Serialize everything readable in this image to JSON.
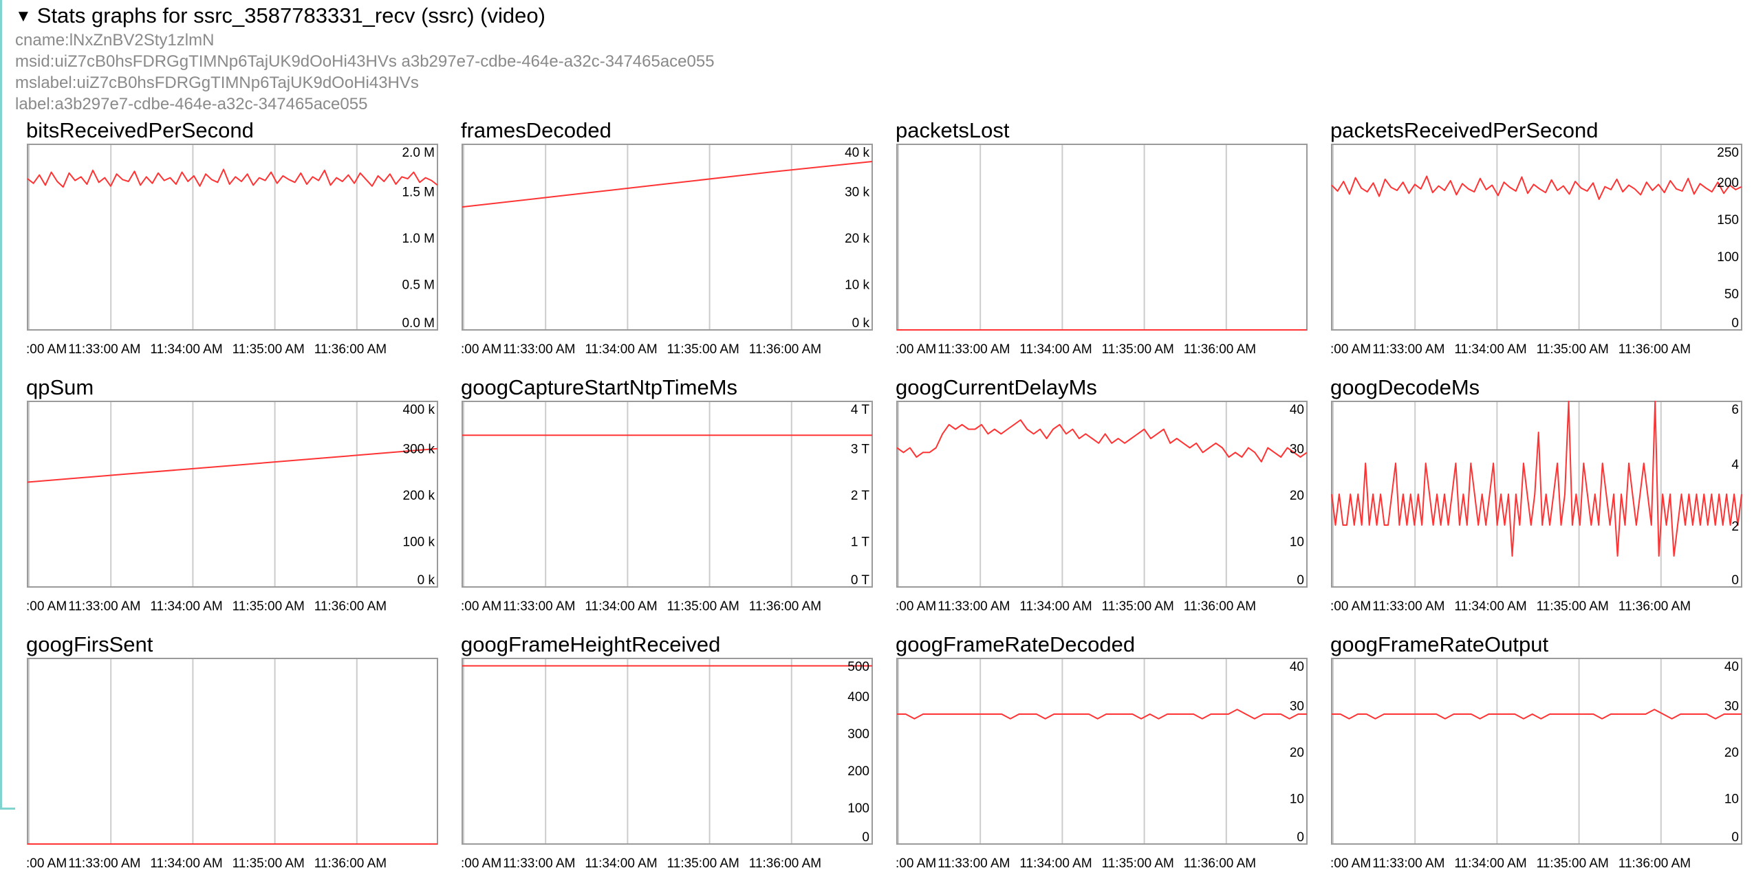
{
  "header": {
    "title": "Stats graphs for ssrc_3587783331_recv (ssrc) (video)",
    "cname": "cname:lNxZnBV2Sty1zlmN",
    "msid": "msid:uiZ7cB0hsFDRGgTIMNp6TajUK9dOoHi43HVs a3b297e7-cdbe-464e-a32c-347465ace055",
    "mslabel": "mslabel:uiZ7cB0hsFDRGgTIMNp6TajUK9dOoHi43HVs",
    "label": "label:a3b297e7-cdbe-464e-a32c-347465ace055"
  },
  "colors": {
    "series": "#ff3333",
    "grid": "#cccccc",
    "border": "#9a9a9a",
    "accent": "#7fd4d0",
    "meta_text": "#8a8a8a"
  },
  "x_ticks": [
    ":00 AM",
    "11:33:00 AM",
    "11:34:00 AM",
    "11:35:00 AM",
    "11:36:00 AM"
  ],
  "chart_data": [
    {
      "name": "bitsReceivedPerSecond",
      "type": "line",
      "ylim": [
        0,
        2000000
      ],
      "y_ticks": [
        "2.0 M",
        "1.5 M",
        "1.0 M",
        "0.5 M",
        "0.0 M"
      ],
      "y_tick_values": [
        2000000,
        1500000,
        1000000,
        500000,
        0
      ],
      "values": [
        1630000,
        1580000,
        1670000,
        1560000,
        1700000,
        1600000,
        1540000,
        1690000,
        1610000,
        1650000,
        1570000,
        1720000,
        1590000,
        1640000,
        1550000,
        1680000,
        1620000,
        1600000,
        1710000,
        1560000,
        1650000,
        1580000,
        1690000,
        1610000,
        1640000,
        1570000,
        1700000,
        1600000,
        1660000,
        1550000,
        1680000,
        1620000,
        1590000,
        1730000,
        1570000,
        1650000,
        1600000,
        1680000,
        1560000,
        1640000,
        1610000,
        1700000,
        1580000,
        1660000,
        1620000,
        1590000,
        1690000,
        1570000,
        1650000,
        1610000,
        1720000,
        1560000,
        1640000,
        1600000,
        1670000,
        1580000,
        1690000,
        1620000,
        1550000,
        1660000,
        1600000,
        1680000,
        1570000,
        1650000,
        1630000,
        1700000,
        1590000,
        1640000,
        1610000,
        1560000
      ]
    },
    {
      "name": "framesDecoded",
      "type": "line",
      "ylim": [
        0,
        40000
      ],
      "y_ticks": [
        "40 k",
        "30 k",
        "20 k",
        "10 k",
        "0 k"
      ],
      "y_tick_values": [
        40000,
        30000,
        20000,
        10000,
        0
      ],
      "values": [
        26500,
        29000,
        31500,
        34000,
        36300
      ]
    },
    {
      "name": "packetsLost",
      "type": "line",
      "ylim": [
        0,
        1
      ],
      "y_ticks": [],
      "y_tick_values": [],
      "values": [
        0,
        0,
        0,
        0,
        0
      ]
    },
    {
      "name": "packetsReceivedPerSecond",
      "type": "line",
      "ylim": [
        0,
        250
      ],
      "y_ticks": [
        "250",
        "200",
        "150",
        "100",
        "50",
        "0"
      ],
      "y_tick_values": [
        250,
        200,
        150,
        100,
        50,
        0
      ],
      "values": [
        195,
        187,
        200,
        183,
        205,
        191,
        186,
        198,
        180,
        203,
        192,
        188,
        199,
        184,
        196,
        190,
        207,
        185,
        194,
        188,
        201,
        182,
        197,
        190,
        186,
        204,
        189,
        195,
        181,
        199,
        192,
        187,
        206,
        184,
        196,
        190,
        185,
        202,
        188,
        194,
        183,
        200,
        191,
        187,
        198,
        176,
        193,
        189,
        203,
        186,
        195,
        190,
        182,
        199,
        188,
        196,
        185,
        201,
        190,
        187,
        204,
        183,
        197,
        191,
        186,
        199,
        184,
        195,
        189,
        193
      ]
    },
    {
      "name": "qpSum",
      "type": "line",
      "ylim": [
        0,
        400000
      ],
      "y_ticks": [
        "400 k",
        "300 k",
        "200 k",
        "100 k",
        "0 k"
      ],
      "y_tick_values": [
        400000,
        300000,
        200000,
        100000,
        0
      ],
      "values": [
        226000,
        244000,
        262000,
        280000,
        298000
      ]
    },
    {
      "name": "googCaptureStartNtpTimeMs",
      "type": "line",
      "ylim": [
        0,
        4000000000000
      ],
      "y_ticks": [
        "4 T",
        "3 T",
        "2 T",
        "1 T",
        "0 T"
      ],
      "y_tick_values": [
        4000000000000,
        3000000000000,
        2000000000000,
        1000000000000,
        0
      ],
      "values": [
        3270000000000,
        3270000000000,
        3270000000000,
        3270000000000,
        3270000000000
      ]
    },
    {
      "name": "googCurrentDelayMs",
      "type": "line",
      "ylim": [
        0,
        40
      ],
      "y_ticks": [
        "40",
        "30",
        "20",
        "10",
        "0"
      ],
      "y_tick_values": [
        40,
        30,
        20,
        10,
        0
      ],
      "values": [
        30,
        29,
        30,
        28,
        29,
        29,
        30,
        33,
        35,
        34,
        35,
        34,
        34,
        35,
        33,
        34,
        33,
        34,
        35,
        36,
        34,
        33,
        34,
        32,
        34,
        35,
        33,
        34,
        32,
        33,
        32,
        31,
        33,
        31,
        32,
        31,
        32,
        33,
        34,
        32,
        33,
        34,
        31,
        32,
        31,
        30,
        31,
        29,
        30,
        31,
        30,
        28,
        29,
        28,
        30,
        29,
        27,
        30,
        29,
        28,
        30,
        29,
        28,
        29
      ]
    },
    {
      "name": "googDecodeMs",
      "type": "line",
      "ylim": [
        0,
        6
      ],
      "y_ticks": [
        "6",
        "4",
        "2",
        "0"
      ],
      "y_tick_values": [
        6,
        4,
        2,
        0
      ],
      "values": [
        3,
        2,
        3,
        2,
        2,
        3,
        2,
        3,
        2,
        4,
        2,
        3,
        2,
        3,
        2,
        2,
        3,
        4,
        2,
        3,
        2,
        3,
        2,
        3,
        2,
        4,
        3,
        2,
        3,
        2,
        3,
        2,
        3,
        4,
        2,
        3,
        2,
        4,
        3,
        2,
        3,
        2,
        3,
        4,
        2,
        3,
        2,
        3,
        1,
        3,
        2,
        4,
        3,
        2,
        3,
        5,
        2,
        3,
        2,
        3,
        4,
        2,
        3,
        6,
        2,
        3,
        2,
        4,
        3,
        2,
        3,
        2,
        4,
        3,
        2,
        3,
        1,
        3,
        2,
        4,
        3,
        2,
        3,
        4,
        3,
        2,
        6,
        1,
        3,
        2,
        3,
        1,
        2,
        3,
        2,
        3,
        2,
        3,
        2,
        3,
        2,
        3,
        2,
        3,
        2,
        3,
        2,
        3,
        2,
        3
      ]
    },
    {
      "name": "googFirsSent",
      "type": "line",
      "ylim": [
        0,
        1
      ],
      "y_ticks": [],
      "y_tick_values": [],
      "values": [
        0,
        0,
        0,
        0,
        0
      ]
    },
    {
      "name": "googFrameHeightReceived",
      "type": "line",
      "ylim": [
        0,
        500
      ],
      "y_ticks": [
        "500",
        "400",
        "300",
        "200",
        "100",
        "0"
      ],
      "y_tick_values": [
        500,
        400,
        300,
        200,
        100,
        0
      ],
      "values": [
        480,
        480,
        480,
        480,
        480
      ]
    },
    {
      "name": "googFrameRateDecoded",
      "type": "line",
      "ylim": [
        0,
        40
      ],
      "y_ticks": [
        "40",
        "30",
        "20",
        "10",
        "0"
      ],
      "y_tick_values": [
        40,
        30,
        20,
        10,
        0
      ],
      "values": [
        28,
        28,
        27,
        28,
        28,
        28,
        28,
        28,
        28,
        28,
        28,
        28,
        28,
        27,
        28,
        28,
        28,
        27,
        28,
        28,
        28,
        28,
        28,
        27,
        28,
        28,
        28,
        28,
        27,
        28,
        27,
        28,
        28,
        28,
        28,
        27,
        28,
        28,
        28,
        29,
        28,
        27,
        28,
        28,
        28,
        27,
        28,
        28
      ]
    },
    {
      "name": "googFrameRateOutput",
      "type": "line",
      "ylim": [
        0,
        40
      ],
      "y_ticks": [
        "40",
        "30",
        "20",
        "10",
        "0"
      ],
      "y_tick_values": [
        40,
        30,
        20,
        10,
        0
      ],
      "values": [
        28,
        28,
        27,
        28,
        28,
        27,
        28,
        28,
        28,
        28,
        28,
        28,
        28,
        27,
        28,
        28,
        28,
        27,
        28,
        28,
        28,
        28,
        27,
        28,
        27,
        28,
        28,
        28,
        28,
        28,
        28,
        27,
        28,
        28,
        28,
        28,
        28,
        29,
        28,
        27,
        28,
        28,
        28,
        28,
        27,
        28,
        28,
        28
      ]
    }
  ]
}
